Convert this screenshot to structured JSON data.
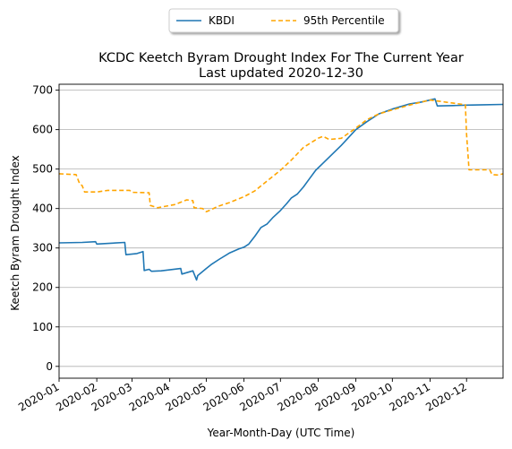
{
  "chart_data": {
    "type": "line",
    "title": "KCDC Keetch Byram Drought Index For The Current Year",
    "subtitle": "Last updated 2020-12-30",
    "xlabel": "Year-Month-Day (UTC Time)",
    "ylabel": "Keetch Byram Drought Index",
    "xlim": [
      "2020-01-01",
      "2020-12-31"
    ],
    "ylim": [
      -30,
      715
    ],
    "yticks": [
      0,
      100,
      200,
      300,
      400,
      500,
      600,
      700
    ],
    "xticks": [
      "2020-01",
      "2020-02",
      "2020-03",
      "2020-04",
      "2020-05",
      "2020-06",
      "2020-07",
      "2020-08",
      "2020-09",
      "2020-10",
      "2020-11",
      "2020-12"
    ],
    "grid": "y",
    "legend_position": "top-center",
    "series": [
      {
        "name": "KBDI",
        "color": "#1f77b4",
        "style": "solid",
        "x": [
          "2020-01-01",
          "2020-01-20",
          "2020-01-31",
          "2020-02-01",
          "2020-02-24",
          "2020-02-25",
          "2020-03-05",
          "2020-03-10",
          "2020-03-11",
          "2020-03-15",
          "2020-03-17",
          "2020-03-25",
          "2020-04-10",
          "2020-04-11",
          "2020-04-20",
          "2020-04-23",
          "2020-04-24",
          "2020-04-26",
          "2020-05-01",
          "2020-05-05",
          "2020-05-12",
          "2020-05-20",
          "2020-05-28",
          "2020-06-01",
          "2020-06-05",
          "2020-06-10",
          "2020-06-15",
          "2020-06-20",
          "2020-06-25",
          "2020-07-01",
          "2020-07-06",
          "2020-07-10",
          "2020-07-15",
          "2020-07-20",
          "2020-07-25",
          "2020-07-30",
          "2020-08-05",
          "2020-08-10",
          "2020-08-20",
          "2020-09-01",
          "2020-09-10",
          "2020-09-20",
          "2020-10-01",
          "2020-10-15",
          "2020-10-25",
          "2020-11-05",
          "2020-11-07",
          "2020-11-20",
          "2020-12-01",
          "2020-12-15",
          "2020-12-31"
        ],
        "values": [
          313,
          314,
          316,
          310,
          314,
          283,
          286,
          291,
          243,
          246,
          241,
          242,
          248,
          234,
          242,
          219,
          230,
          235,
          248,
          258,
          272,
          287,
          298,
          302,
          310,
          330,
          352,
          361,
          378,
          395,
          412,
          427,
          437,
          455,
          476,
          497,
          515,
          530,
          560,
          600,
          620,
          640,
          652,
          665,
          670,
          678,
          660,
          661,
          662,
          663,
          664
        ]
      },
      {
        "name": "95th Percentile",
        "color": "#ffa500",
        "style": "dashed",
        "x": [
          "2020-01-01",
          "2020-01-15",
          "2020-01-18",
          "2020-01-20",
          "2020-01-22",
          "2020-02-01",
          "2020-02-10",
          "2020-02-28",
          "2020-03-01",
          "2020-03-15",
          "2020-03-16",
          "2020-03-22",
          "2020-04-05",
          "2020-04-15",
          "2020-04-20",
          "2020-04-21",
          "2020-04-28",
          "2020-05-01",
          "2020-05-05",
          "2020-05-10",
          "2020-05-20",
          "2020-06-01",
          "2020-06-10",
          "2020-06-20",
          "2020-07-01",
          "2020-07-10",
          "2020-07-20",
          "2020-08-01",
          "2020-08-05",
          "2020-08-10",
          "2020-08-20",
          "2020-09-01",
          "2020-09-10",
          "2020-09-20",
          "2020-10-01",
          "2020-10-15",
          "2020-10-25",
          "2020-11-01",
          "2020-11-30",
          "2020-12-01",
          "2020-12-03",
          "2020-12-20",
          "2020-12-22",
          "2020-12-27",
          "2020-12-31"
        ],
        "values": [
          488,
          486,
          462,
          458,
          442,
          442,
          446,
          446,
          441,
          440,
          408,
          402,
          410,
          422,
          420,
          402,
          400,
          392,
          397,
          405,
          415,
          430,
          445,
          470,
          497,
          523,
          555,
          578,
          583,
          575,
          578,
          604,
          625,
          640,
          650,
          662,
          670,
          675,
          663,
          590,
          498,
          498,
          486,
          485,
          488
        ]
      }
    ]
  }
}
